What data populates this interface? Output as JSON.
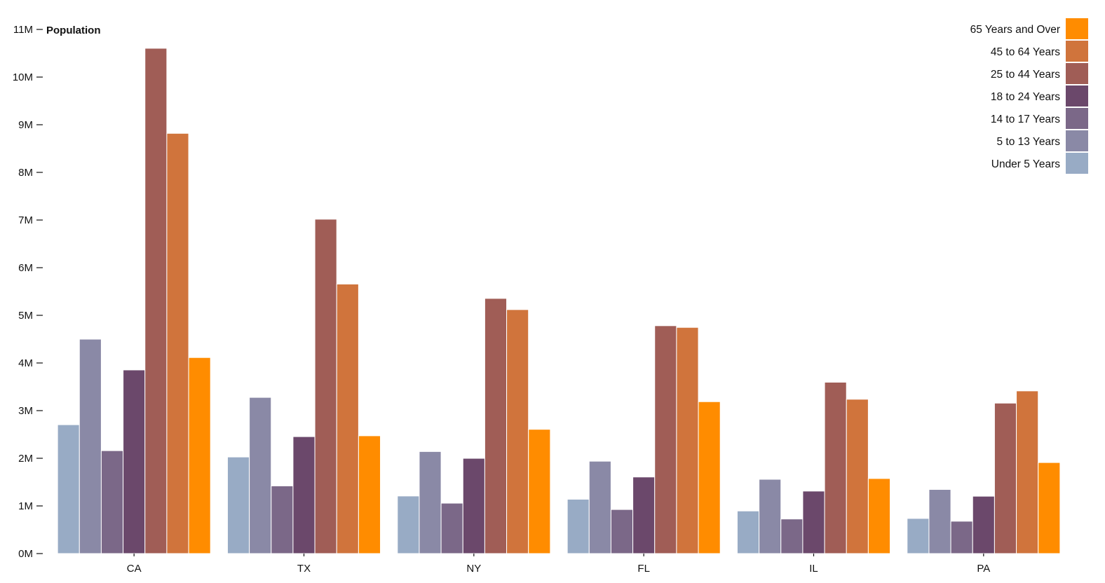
{
  "chart_data": {
    "type": "bar",
    "ylabel": "Population",
    "ylim": [
      0,
      11000000
    ],
    "yticks": [
      {
        "value": 0,
        "label": "0M"
      },
      {
        "value": 1000000,
        "label": "1M"
      },
      {
        "value": 2000000,
        "label": "2M"
      },
      {
        "value": 3000000,
        "label": "3M"
      },
      {
        "value": 4000000,
        "label": "4M"
      },
      {
        "value": 5000000,
        "label": "5M"
      },
      {
        "value": 6000000,
        "label": "6M"
      },
      {
        "value": 7000000,
        "label": "7M"
      },
      {
        "value": 8000000,
        "label": "8M"
      },
      {
        "value": 9000000,
        "label": "9M"
      },
      {
        "value": 10000000,
        "label": "10M"
      },
      {
        "value": 11000000,
        "label": "11M"
      }
    ],
    "categories": [
      "CA",
      "TX",
      "NY",
      "FL",
      "IL",
      "PA"
    ],
    "legend_position": "top-right",
    "series": [
      {
        "name": "Under 5 Years",
        "color": "#98abc5",
        "values": [
          2704659,
          2027307,
          1208495,
          1140516,
          894368,
          737462
        ]
      },
      {
        "name": "5 to 13 Years",
        "color": "#8a89a6",
        "values": [
          4499890,
          3277946,
          2141490,
          1938695,
          1558919,
          1345341
        ]
      },
      {
        "name": "14 to 17 Years",
        "color": "#7b6888",
        "values": [
          2159981,
          1420518,
          1058031,
          925060,
          725973,
          679201
        ]
      },
      {
        "name": "18 to 24 Years",
        "color": "#6b486b",
        "values": [
          3853788,
          2454721,
          1999120,
          1607297,
          1311479,
          1203944
        ]
      },
      {
        "name": "25 to 44 Years",
        "color": "#a05d56",
        "values": [
          10604510,
          7017731,
          5355235,
          4782119,
          3596343,
          3157759
        ]
      },
      {
        "name": "45 to 64 Years",
        "color": "#d0743c",
        "values": [
          8819342,
          5656528,
          5120254,
          4746856,
          3239173,
          3414001
        ]
      },
      {
        "name": "65 Years and Over",
        "color": "#ff8c00",
        "values": [
          4114496,
          2472223,
          2607672,
          3187797,
          1575308,
          1910571
        ]
      }
    ]
  }
}
